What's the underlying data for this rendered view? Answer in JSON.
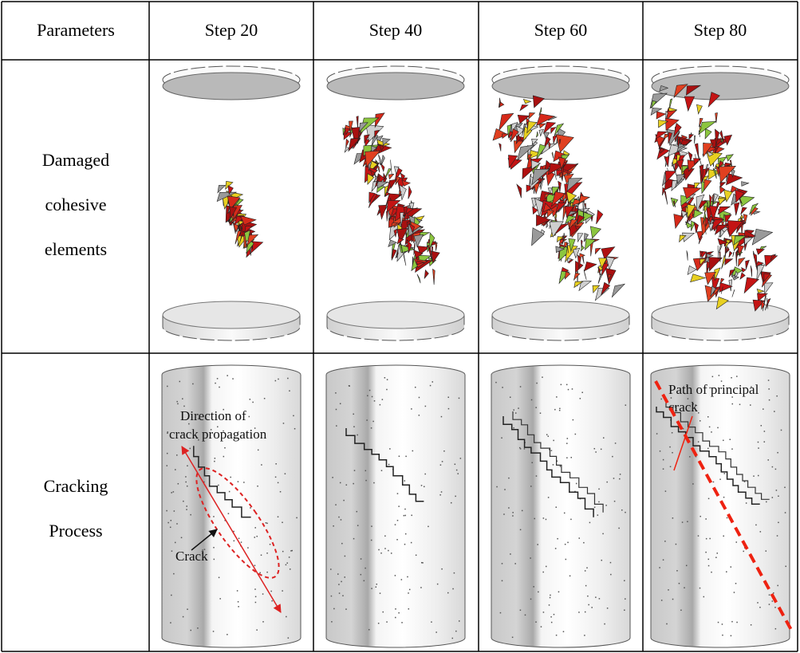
{
  "table": {
    "header": [
      "Parameters",
      "Step 20",
      "Step 40",
      "Step 60",
      "Step 80"
    ],
    "rows": [
      {
        "label": [
          "Damaged",
          "cohesive",
          "elements"
        ]
      },
      {
        "label": [
          "Cracking",
          "Process"
        ]
      }
    ]
  },
  "annotations": {
    "direction": [
      "Direction of",
      "crack propagation"
    ],
    "crack": "Crack",
    "principal_path": [
      "Path of principal",
      "crack"
    ]
  }
}
